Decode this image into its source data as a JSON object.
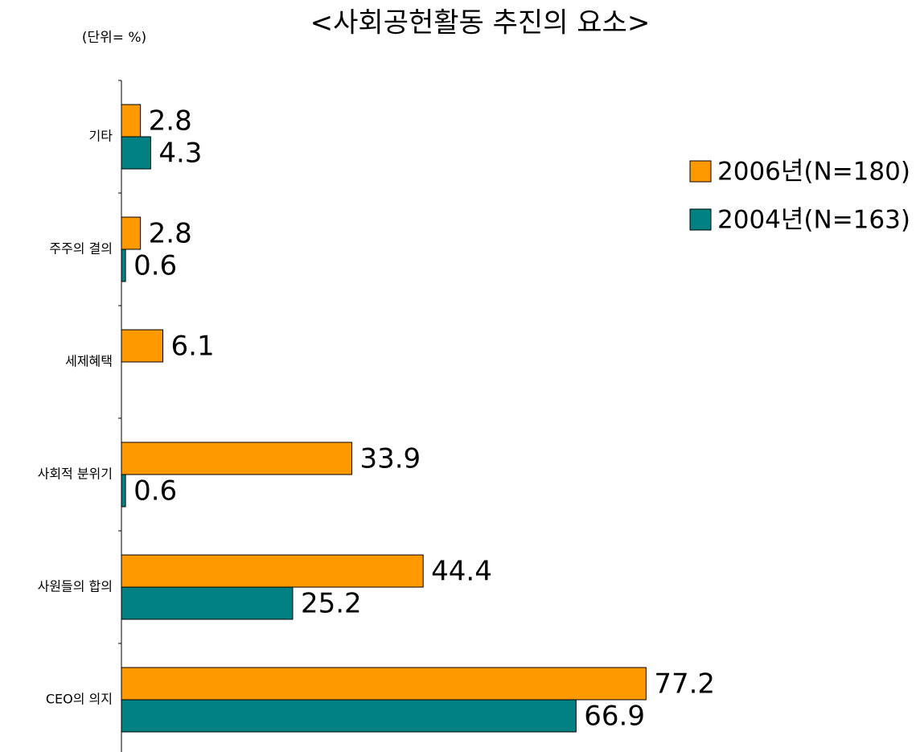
{
  "chart_data": {
    "type": "bar",
    "orientation": "horizontal",
    "title": "<사회공헌활동 추진의 요소>",
    "unit_label": "(단위= %)",
    "categories": [
      "기타",
      "주주의 결의",
      "세제혜택",
      "사회적 분위기",
      "사원들의 합의",
      "CEO의 의지"
    ],
    "series": [
      {
        "name": "2006년(N=180)",
        "color": "#ff9900",
        "values": [
          2.8,
          2.8,
          6.1,
          33.9,
          44.4,
          77.2
        ]
      },
      {
        "name": "2004년(N=163)",
        "color": "#008080",
        "values": [
          4.3,
          0.6,
          null,
          0.6,
          25.2,
          66.9
        ]
      }
    ],
    "xlim": [
      0,
      100
    ],
    "legend": "right"
  }
}
